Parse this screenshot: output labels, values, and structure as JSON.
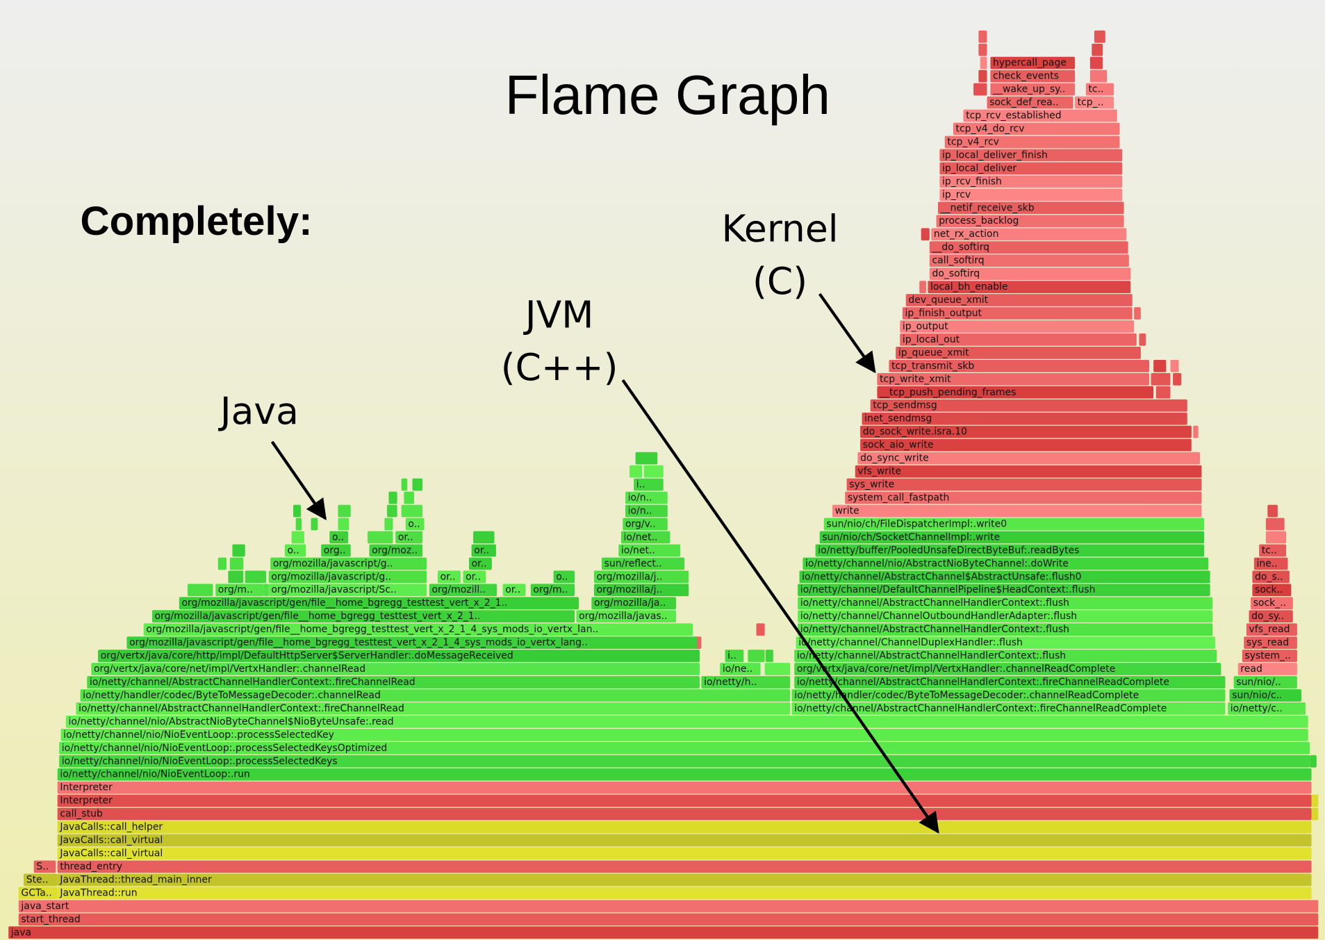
{
  "title": "Flame Graph",
  "heading": "Completely:",
  "annotations": [
    {
      "lines": [
        "Kernel",
        "(C)"
      ]
    },
    {
      "lines": [
        "JVM",
        "(C++)"
      ]
    },
    {
      "lines": [
        "Java"
      ]
    }
  ],
  "frames": [
    "java",
    "start_thread",
    "java_start",
    "GCTa..",
    "JavaThread::run",
    "Ste..",
    "JavaThread::thread_main_inner",
    "S..",
    "thread_entry",
    "JavaCalls::call_virtual",
    "JavaCalls::call_virtual",
    "JavaCalls::call_helper",
    "call_stub",
    "Interpreter",
    "Interpreter",
    "io/netty/channel/nio/NioEventLoop:.run",
    "io/netty/channel/nio/NioEventLoop:.processSelectedKeys",
    "io/netty/channel/nio/NioEventLoop:.processSelectedKeysOptimized",
    "io/netty/channel/nio/NioEventLoop:.processSelectedKey",
    "io/netty/channel/nio/AbstractNioByteChannel$NioByteUnsafe:.read",
    "io/netty/channel/AbstractChannelHandlerContext:.fireChannelRead",
    "io/netty/channel/AbstractChannelHandlerContext:.fireChannelReadComplete",
    "io/netty/c..",
    "io/netty/handler/codec/ByteToMessageDecoder:.channelRead",
    "io/netty/handler/codec/ByteToMessageDecoder:.channelReadComplete",
    "sun/nio/c..",
    "io/netty/channel/AbstractChannelHandlerContext:.fireChannelRead",
    "io/netty/h..",
    "io/netty/channel/AbstractChannelHandlerContext:.fireChannelReadComplete",
    "sun/nio/..",
    "org/vertx/java/core/net/impl/VertxHandler:.channelRead",
    "io/ne..",
    "org/vertx/java/core/net/impl/VertxHandler:.channelReadComplete",
    "read",
    "org/vertx/java/core/http/impl/DefaultHttpServer$ServerHandler:.doMessageReceived",
    "i..",
    "io/netty/channel/AbstractChannelHandlerContext:.flush",
    "system_..",
    "org/mozilla/javascript/gen/file__home_bgregg_testtest_vert_x_2_1_4_sys_mods_io_vertx_lang..",
    "io/netty/channel/ChannelDuplexHandler:.flush",
    "sys_read",
    "org/mozilla/javascript/gen/file__home_bgregg_testtest_vert_x_2_1_4_sys_mods_io_vertx_lan..",
    "io/netty/channel/AbstractChannelHandlerContext:.flush",
    "vfs_read",
    "org/mozilla/javascript/gen/file__home_bgregg_testtest_vert_x_2_1..",
    "org/mozilla/javas..",
    "io/netty/channel/ChannelOutboundHandlerAdapter:.flush",
    "do_sy..",
    "org/mozilla/javascript/gen/file__home_bgregg_testtest_vert_x_2_1..",
    "org/mozilla/ja..",
    "io/netty/channel/AbstractChannelHandlerContext:.flush",
    "sock_..",
    "org/m..",
    "org/mozilla/javascript/Sc..",
    "org/mozill..",
    "or..",
    "org/m..",
    "org/mozilla/j..",
    "io/netty/channel/DefaultChannelPipeline$HeadContext:.flush",
    "sock..",
    "org/mozilla/javascript/g..",
    "or..",
    "or..",
    "o..",
    "org/mozilla/j..",
    "io/netty/channel/AbstractChannel$AbstractUnsafe:.flush0",
    "do_s..",
    "org/mozilla/javascript/g..",
    "or..",
    "sun/reflect..",
    "io/netty/channel/nio/AbstractNioByteChannel:.doWrite",
    "ine..",
    "o..",
    "org..",
    "org/moz..",
    "or..",
    "io/net..",
    "io/netty/buffer/PooledUnsafeDirectByteBuf:.readBytes",
    "tc..",
    "o..",
    "or..",
    "io/net..",
    "sun/nio/ch/SocketChannelImpl:.write",
    "o..",
    "org/v..",
    "sun/nio/ch/FileDispatcherImpl:.write0",
    "io/n..",
    "write",
    "io/n..",
    "system_call_fastpath",
    "i..",
    "sys_write",
    "vfs_write",
    "do_sync_write",
    "sock_aio_write",
    "do_sock_write.isra.10",
    "inet_sendmsg",
    "tcp_sendmsg",
    "__tcp_push_pending_frames",
    "tcp_write_xmit",
    "tcp_transmit_skb",
    "ip_queue_xmit",
    "ip_local_out",
    "ip_output",
    "ip_finish_output",
    "dev_queue_xmit",
    "local_bh_enable",
    "do_softirq",
    "call_softirq",
    "__do_softirq",
    "net_rx_action",
    "process_backlog",
    "__netif_receive_skb",
    "ip_rcv",
    "ip_rcv_finish",
    "ip_local_deliver",
    "ip_local_deliver_finish",
    "tcp_v4_rcv",
    "tcp_v4_do_rcv",
    "tcp_rcv_established",
    "sock_def_rea..",
    "tcp_..",
    "__wake_up_sy..",
    "tc..",
    "check_events",
    "hypercall_page"
  ]
}
